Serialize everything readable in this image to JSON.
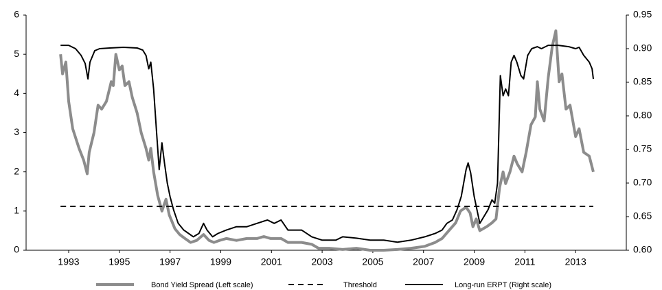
{
  "chart_data": {
    "type": "line",
    "xlim": [
      1991.32,
      2015.0
    ],
    "xticks": [
      1993,
      1995,
      1997,
      1999,
      2001,
      2003,
      2005,
      2007,
      2009,
      2011,
      2013
    ],
    "ylim": [
      0,
      6
    ],
    "yticks": [
      0,
      1,
      2,
      3,
      4,
      5,
      6
    ],
    "y2lim": [
      0.6,
      0.95
    ],
    "y2ticks": [
      {
        "value": 0.6,
        "label": "0.60"
      },
      0.65,
      {
        "value": 0.7,
        "label": "0.70"
      },
      0.75,
      {
        "value": 0.8,
        "label": "0.80"
      },
      0.85,
      {
        "value": 0.9,
        "label": "0.90"
      },
      0.95
    ],
    "series": [
      {
        "name": "Bond Yield Spread (Left scale)",
        "color": "#8c8c8c",
        "width": 4,
        "dash": "solid",
        "x": [
          1992.68,
          1992.76,
          1992.89,
          1993.0,
          1993.16,
          1993.41,
          1993.59,
          1993.73,
          1993.81,
          1994.0,
          1994.16,
          1994.3,
          1994.49,
          1994.68,
          1994.76,
          1994.86,
          1995.0,
          1995.11,
          1995.22,
          1995.38,
          1995.51,
          1995.7,
          1995.86,
          1996.05,
          1996.16,
          1996.24,
          1996.35,
          1996.51,
          1996.68,
          1996.84,
          1996.97,
          1997.19,
          1997.38,
          1997.59,
          1997.81,
          1998.05,
          1998.32,
          1998.54,
          1998.73,
          1998.95,
          1999.22,
          1999.62,
          2000.03,
          2000.43,
          2000.7,
          2000.97,
          2001.38,
          2001.65,
          2002.19,
          2002.59,
          2002.86,
          2003.27,
          2003.81,
          2004.35,
          2004.89,
          2005.43,
          2005.97,
          2006.51,
          2007.05,
          2007.46,
          2007.73,
          2008.0,
          2008.27,
          2008.46,
          2008.68,
          2008.84,
          2008.95,
          2009.08,
          2009.22,
          2009.49,
          2009.7,
          2009.86,
          2010.0,
          2010.14,
          2010.24,
          2010.41,
          2010.57,
          2010.7,
          2010.89,
          2011.05,
          2011.24,
          2011.41,
          2011.49,
          2011.59,
          2011.76,
          2011.92,
          2012.08,
          2012.22,
          2012.35,
          2012.46,
          2012.62,
          2012.78,
          2013.0,
          2013.14,
          2013.32,
          2013.54,
          2013.7
        ],
        "values": [
          5.0,
          4.5,
          4.8,
          3.8,
          3.1,
          2.6,
          2.3,
          1.95,
          2.5,
          3.0,
          3.7,
          3.6,
          3.8,
          4.3,
          4.2,
          5.0,
          4.6,
          4.7,
          4.2,
          4.3,
          3.9,
          3.5,
          3.0,
          2.6,
          2.3,
          2.6,
          2.0,
          1.4,
          1.0,
          1.3,
          0.9,
          0.55,
          0.4,
          0.3,
          0.2,
          0.25,
          0.4,
          0.25,
          0.2,
          0.25,
          0.3,
          0.25,
          0.3,
          0.3,
          0.35,
          0.3,
          0.3,
          0.2,
          0.2,
          0.15,
          0.05,
          0.05,
          0.02,
          0.05,
          0.0,
          0.0,
          0.02,
          0.05,
          0.1,
          0.2,
          0.3,
          0.5,
          0.7,
          1.0,
          1.1,
          0.95,
          0.6,
          0.8,
          0.5,
          0.6,
          0.7,
          0.8,
          1.6,
          2.0,
          1.7,
          2.0,
          2.4,
          2.2,
          2.0,
          2.5,
          3.2,
          3.4,
          4.3,
          3.6,
          3.3,
          4.4,
          5.2,
          5.6,
          4.3,
          4.5,
          3.6,
          3.7,
          2.9,
          3.1,
          2.5,
          2.4,
          2.0
        ]
      },
      {
        "name": "Threshold",
        "color": "#000000",
        "width": 2,
        "dash": "dashed",
        "x": [
          1992.68,
          2013.7
        ],
        "values": [
          1.12,
          1.12
        ]
      },
      {
        "name": "Long-run ERPT (Right scale)",
        "color": "#000000",
        "width": 2,
        "dash": "solid",
        "axis": "y2",
        "x": [
          1992.68,
          1993.0,
          1993.27,
          1993.49,
          1993.65,
          1993.76,
          1993.84,
          1994.03,
          1994.22,
          1994.62,
          1995.16,
          1995.7,
          1995.92,
          1996.05,
          1996.16,
          1996.24,
          1996.35,
          1996.46,
          1996.57,
          1996.68,
          1996.78,
          1996.89,
          1997.0,
          1997.14,
          1997.32,
          1997.54,
          1997.73,
          1997.92,
          1998.14,
          1998.32,
          1998.46,
          1998.68,
          1998.89,
          1999.22,
          1999.62,
          2000.03,
          2000.43,
          2000.84,
          2001.11,
          2001.38,
          2001.65,
          2002.19,
          2002.59,
          2003.0,
          2003.54,
          2003.81,
          2004.35,
          2004.89,
          2005.43,
          2005.97,
          2006.51,
          2007.05,
          2007.46,
          2007.73,
          2007.92,
          2008.14,
          2008.32,
          2008.49,
          2008.68,
          2008.76,
          2008.86,
          2009.0,
          2009.11,
          2009.22,
          2009.38,
          2009.54,
          2009.7,
          2009.81,
          2009.92,
          2010.03,
          2010.14,
          2010.24,
          2010.35,
          2010.46,
          2010.57,
          2010.68,
          2010.84,
          2010.95,
          2011.11,
          2011.27,
          2011.49,
          2011.65,
          2011.92,
          2012.32,
          2012.73,
          2013.0,
          2013.14,
          2013.32,
          2013.54,
          2013.65,
          2013.7
        ],
        "values": [
          0.905,
          0.905,
          0.9,
          0.89,
          0.878,
          0.855,
          0.88,
          0.897,
          0.9,
          0.901,
          0.902,
          0.901,
          0.898,
          0.89,
          0.87,
          0.88,
          0.84,
          0.78,
          0.72,
          0.76,
          0.73,
          0.7,
          0.68,
          0.66,
          0.64,
          0.63,
          0.625,
          0.62,
          0.625,
          0.64,
          0.63,
          0.62,
          0.625,
          0.63,
          0.635,
          0.635,
          0.64,
          0.645,
          0.64,
          0.645,
          0.63,
          0.63,
          0.62,
          0.615,
          0.615,
          0.62,
          0.618,
          0.615,
          0.615,
          0.612,
          0.615,
          0.62,
          0.625,
          0.63,
          0.64,
          0.645,
          0.66,
          0.68,
          0.72,
          0.73,
          0.715,
          0.68,
          0.66,
          0.64,
          0.65,
          0.66,
          0.675,
          0.67,
          0.7,
          0.86,
          0.83,
          0.84,
          0.83,
          0.88,
          0.89,
          0.88,
          0.86,
          0.855,
          0.89,
          0.9,
          0.903,
          0.9,
          0.905,
          0.905,
          0.903,
          0.9,
          0.902,
          0.89,
          0.88,
          0.87,
          0.855
        ]
      }
    ]
  }
}
